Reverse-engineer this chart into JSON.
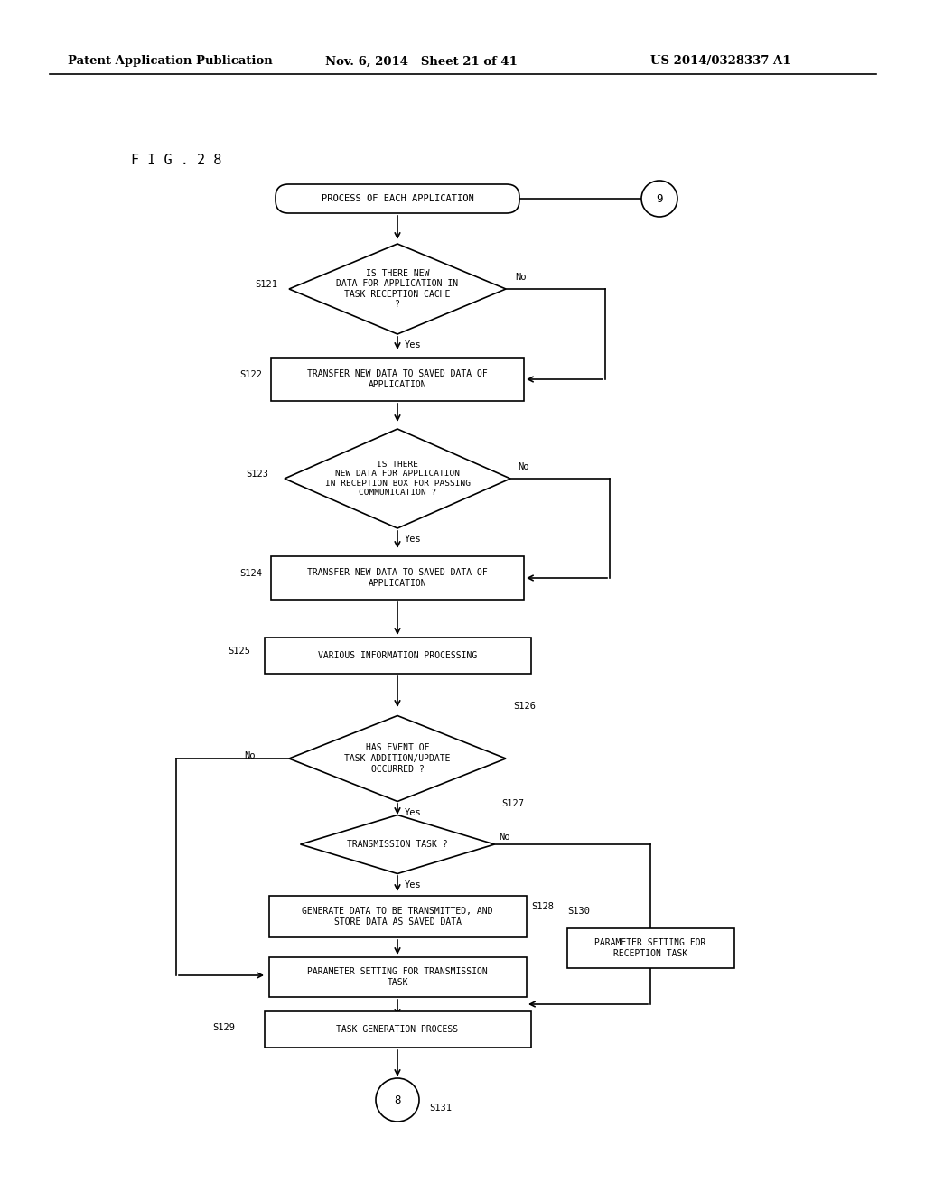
{
  "bg_color": "#ffffff",
  "header_left": "Patent Application Publication",
  "header_mid": "Nov. 6, 2014   Sheet 21 of 41",
  "header_right": "US 2014/0328337 A1",
  "fig_label": "F I G . 2 8"
}
